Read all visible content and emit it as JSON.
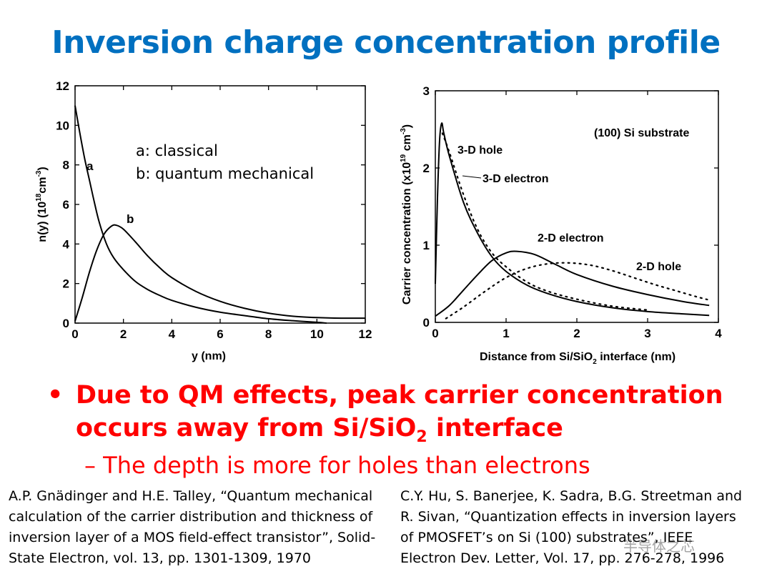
{
  "title": "Inversion charge concentration profile",
  "chart_data": [
    {
      "type": "line",
      "title": "",
      "xlabel": "y (nm)",
      "ylabel_main": "n(y)  (10",
      "ylabel_sup": "18",
      "ylabel_rest": "cm",
      "ylabel_sup2": "-3",
      "ylabel_close": ")",
      "xlim": [
        0,
        12
      ],
      "ylim": [
        0,
        12
      ],
      "xticks": [
        0,
        2,
        4,
        6,
        8,
        10,
        12
      ],
      "yticks": [
        0,
        2,
        4,
        6,
        8,
        10,
        12
      ],
      "legend": [
        "a: classical",
        "b: quantum mechanical"
      ],
      "series": [
        {
          "name": "a",
          "x": [
            0,
            0.2,
            0.4,
            0.6,
            0.8,
            1.0,
            1.3,
            1.6,
            2.0,
            2.5,
            3.0,
            3.5,
            4.0,
            5.0,
            6.0,
            7.0,
            8.0,
            9.0,
            10.0,
            10.4
          ],
          "values": [
            11.0,
            9.6,
            8.3,
            7.2,
            6.1,
            5.1,
            4.0,
            3.3,
            2.7,
            2.1,
            1.7,
            1.4,
            1.15,
            0.8,
            0.55,
            0.38,
            0.22,
            0.12,
            0.04,
            0.0
          ]
        },
        {
          "name": "b",
          "x": [
            0,
            0.3,
            0.6,
            0.9,
            1.2,
            1.5,
            1.7,
            2.0,
            2.5,
            3.0,
            3.5,
            4.0,
            5.0,
            6.0,
            7.0,
            8.0,
            9.0,
            10.0,
            11.0,
            12.0
          ],
          "values": [
            0.1,
            1.3,
            2.6,
            3.7,
            4.5,
            4.9,
            4.95,
            4.75,
            4.1,
            3.4,
            2.8,
            2.3,
            1.6,
            1.1,
            0.75,
            0.5,
            0.35,
            0.28,
            0.25,
            0.25
          ]
        }
      ],
      "curve_labels": [
        "a",
        "b"
      ]
    },
    {
      "type": "line",
      "title": "",
      "xlabel_main": "Distance from Si/SiO",
      "xlabel_sub": "2",
      "xlabel_rest": " interface (nm)",
      "ylabel_main": "Carrier  concentration (x10",
      "ylabel_sup": "19",
      "ylabel_rest": " cm",
      "ylabel_sup2": "-3",
      "ylabel_close": ")",
      "xlim": [
        0,
        4
      ],
      "ylim": [
        0,
        3
      ],
      "xticks": [
        0,
        1,
        2,
        3,
        4
      ],
      "yticks": [
        0,
        1,
        2,
        3
      ],
      "annotation": "(100) Si substrate",
      "series": [
        {
          "name": "3-D electron",
          "style": "solid",
          "x": [
            0,
            0.03,
            0.06,
            0.09,
            0.12,
            0.2,
            0.4,
            0.6,
            0.8,
            1.0,
            1.3,
            1.6,
            2.0,
            2.5,
            3.0,
            3.5,
            3.87
          ],
          "values": [
            0.5,
            1.6,
            2.35,
            2.58,
            2.45,
            2.15,
            1.55,
            1.15,
            0.85,
            0.66,
            0.48,
            0.37,
            0.27,
            0.19,
            0.14,
            0.11,
            0.09
          ]
        },
        {
          "name": "3-D hole",
          "style": "dotted",
          "x": [
            0.1,
            0.2,
            0.4,
            0.6,
            0.8,
            1.0,
            1.3,
            1.6,
            2.0,
            2.5,
            3.0
          ],
          "values": [
            2.45,
            2.2,
            1.65,
            1.2,
            0.9,
            0.72,
            0.52,
            0.4,
            0.3,
            0.21,
            0.16
          ]
        },
        {
          "name": "2-D electron",
          "style": "solid",
          "x": [
            0,
            0.2,
            0.4,
            0.6,
            0.8,
            1.0,
            1.15,
            1.4,
            1.7,
            2.0,
            2.5,
            3.0,
            3.5,
            3.87
          ],
          "values": [
            0.08,
            0.22,
            0.42,
            0.62,
            0.8,
            0.9,
            0.92,
            0.88,
            0.75,
            0.62,
            0.47,
            0.36,
            0.27,
            0.22
          ]
        },
        {
          "name": "2-D hole",
          "style": "dotted",
          "x": [
            0.15,
            0.4,
            0.7,
            1.0,
            1.3,
            1.6,
            1.9,
            2.2,
            2.5,
            2.8,
            3.1,
            3.4,
            3.7,
            3.87
          ],
          "values": [
            0.05,
            0.2,
            0.4,
            0.58,
            0.7,
            0.76,
            0.77,
            0.74,
            0.67,
            0.58,
            0.49,
            0.41,
            0.33,
            0.29
          ]
        }
      ],
      "curve_labels": [
        "3-D hole",
        "3-D electron",
        "2-D electron",
        "2-D hole"
      ]
    }
  ],
  "bullet": {
    "marker": "•",
    "line1": "Due to QM effects, peak carrier concentration",
    "line2_pre": "occurs away from Si/SiO",
    "line2_sub": "2",
    "line2_post": " interface"
  },
  "sub_bullet": "– The depth is more for holes than electrons",
  "references": {
    "left": [
      "A.P. Gnädinger and H.E. Talley, “Quantum mechanical",
      "calculation of the carrier distribution and thickness of",
      "inversion layer of a MOS field-effect transistor”, Solid-",
      "State Electron, vol. 13, pp. 1301-1309, 1970"
    ],
    "right": [
      "C.Y. Hu, S. Banerjee, K. Sadra, B.G. Streetman and",
      "R. Sivan, “Quantization effects in inversion layers",
      "of PMOSFET’s on Si (100) substrates”, IEEE",
      "Electron Dev. Letter, Vol. 17, pp. 276-278, 1996"
    ]
  },
  "watermark": "半导体之芯"
}
